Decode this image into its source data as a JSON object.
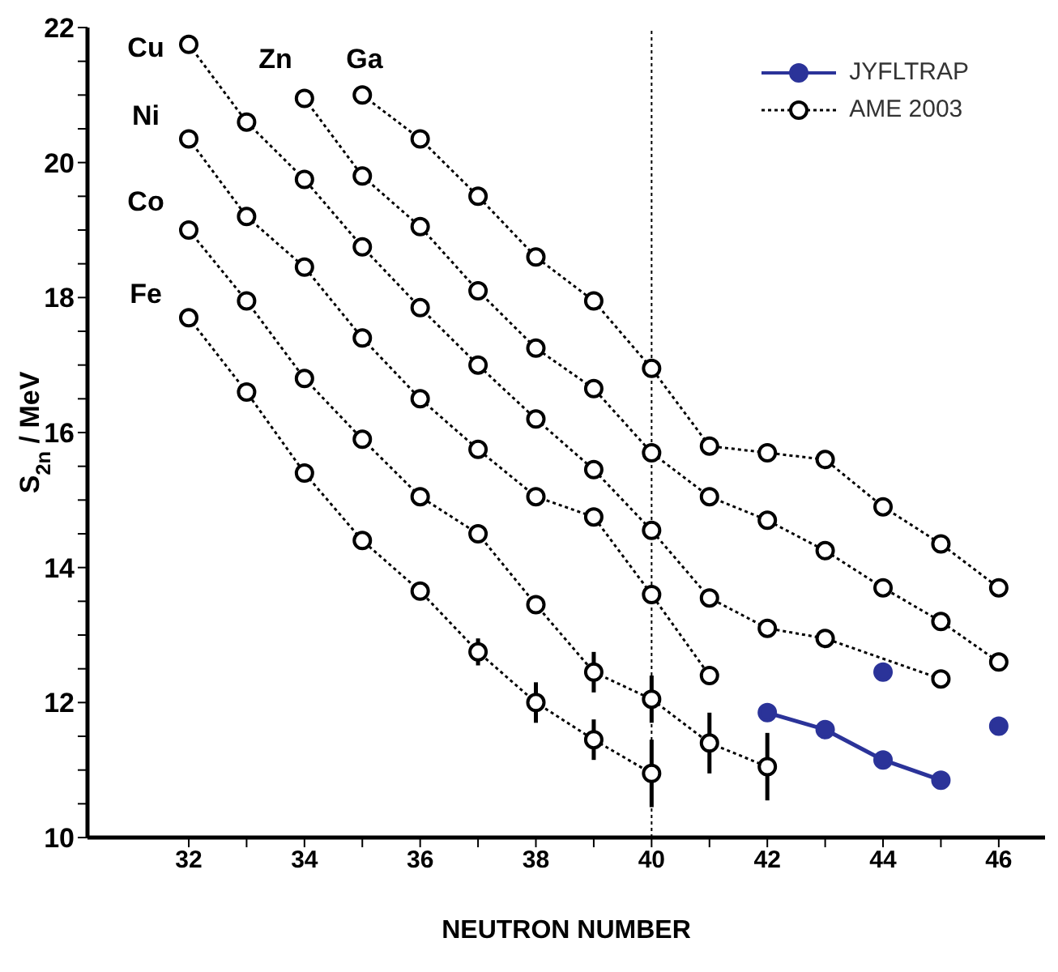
{
  "chart_data": {
    "type": "line",
    "xlabel": "NEUTRON NUMBER",
    "ylabel": "S$_{2n}$ / MeV",
    "xlim": [
      30.25,
      46.8
    ],
    "ylim": [
      10,
      22
    ],
    "xticks": [
      32,
      {
        "value": 33,
        "label": null
      },
      34,
      {
        "value": 35,
        "label": null
      },
      36,
      {
        "value": 37,
        "label": null
      },
      38,
      {
        "value": 39,
        "label": null
      },
      40,
      {
        "value": 41,
        "label": null
      },
      42,
      {
        "value": 43,
        "label": null
      },
      44,
      {
        "value": 45,
        "label": null
      },
      46
    ],
    "yticks": [
      10,
      {
        "value": 10.5,
        "label": null
      },
      {
        "value": 11,
        "label": null
      },
      {
        "value": 11.5,
        "label": null
      },
      12,
      {
        "value": 12.5,
        "label": null
      },
      {
        "value": 13,
        "label": null
      },
      {
        "value": 13.5,
        "label": null
      },
      14,
      {
        "value": 14.5,
        "label": null
      },
      {
        "value": 15,
        "label": null
      },
      {
        "value": 15.5,
        "label": null
      },
      16,
      {
        "value": 16.5,
        "label": null
      },
      {
        "value": 17,
        "label": null
      },
      {
        "value": 17.5,
        "label": null
      },
      18,
      {
        "value": 18.5,
        "label": null
      },
      {
        "value": 19,
        "label": null
      },
      {
        "value": 19.5,
        "label": null
      },
      20,
      {
        "value": 20.5,
        "label": null
      },
      {
        "value": 21,
        "label": null
      },
      {
        "value": 21.5,
        "label": null
      },
      22
    ],
    "legend": "top right",
    "ref_lines": [
      {
        "axis": "x",
        "value": 40,
        "line_style": "dotted",
        "color": "#000000"
      }
    ],
    "annotations": [
      "Cu",
      "Ni",
      "Co",
      "Fe",
      "Zn",
      "Ga"
    ],
    "series": [
      {
        "name": "JYFLTRAP",
        "color": "#2b3399",
        "marker": "circle",
        "line_style": "solid",
        "x": [
          42,
          43,
          44,
          45
        ],
        "values": [
          11.85,
          11.6,
          11.15,
          10.85
        ]
      },
      {
        "name": "AME 2003",
        "color": "#000000",
        "marker": "circle",
        "line_style": "dotted",
        "x": [
          32,
          33,
          34,
          35,
          36,
          37,
          38,
          39,
          40
        ],
        "values": [
          17.7,
          16.6,
          15.4,
          14.4,
          13.65,
          12.75,
          12.0,
          11.45,
          10.95
        ],
        "errors": [
          null,
          null,
          null,
          null,
          null,
          0.2,
          0.3,
          0.3,
          0.5
        ]
      },
      {
        "color": "#000000",
        "marker": "circle",
        "line_style": "dotted",
        "x": [
          32,
          33,
          34,
          35,
          36,
          37,
          38,
          39,
          40,
          41,
          42
        ],
        "values": [
          19.0,
          17.95,
          16.8,
          15.9,
          15.05,
          14.5,
          13.45,
          12.45,
          12.05,
          11.4,
          11.05
        ],
        "errors": [
          null,
          null,
          null,
          null,
          null,
          null,
          null,
          0.3,
          0.35,
          0.45,
          0.5
        ]
      },
      {
        "color": "#000000",
        "marker": "circle",
        "line_style": "dotted",
        "x": [
          32,
          33,
          34,
          35,
          36,
          37,
          38,
          39,
          40,
          41
        ],
        "values": [
          20.35,
          19.2,
          18.45,
          17.4,
          16.5,
          15.75,
          15.05,
          14.75,
          13.6,
          12.4
        ]
      },
      {
        "color": "#000000",
        "marker": "circle",
        "line_style": "dotted",
        "x": [
          32,
          33,
          34,
          35,
          36,
          37,
          38,
          39,
          40,
          41,
          42,
          43,
          45
        ],
        "values": [
          21.75,
          20.6,
          19.75,
          18.75,
          17.85,
          17.0,
          16.2,
          15.45,
          14.55,
          13.55,
          13.1,
          12.95,
          12.35
        ]
      },
      {
        "type": "scatter",
        "color": "#2b3399",
        "marker": "circle",
        "line_style": "solid",
        "x": [
          44,
          46
        ],
        "values": [
          12.45,
          11.65
        ]
      },
      {
        "color": "#000000",
        "marker": "circle",
        "line_style": "dotted",
        "x": [
          34,
          35,
          36,
          37,
          38,
          39,
          40,
          41,
          42,
          43,
          44,
          45,
          46
        ],
        "values": [
          20.95,
          19.8,
          19.05,
          18.1,
          17.25,
          16.65,
          15.7,
          15.05,
          14.7,
          14.25,
          13.7,
          13.2,
          12.6
        ]
      },
      {
        "color": "#000000",
        "marker": "circle",
        "line_style": "dotted",
        "x": [
          35,
          36,
          37,
          38,
          39,
          40,
          41,
          42,
          43,
          44,
          45,
          46
        ],
        "values": [
          21.0,
          20.35,
          19.5,
          18.6,
          17.95,
          16.95,
          15.8,
          15.7,
          15.6,
          14.9,
          14.35,
          13.7
        ]
      }
    ]
  }
}
